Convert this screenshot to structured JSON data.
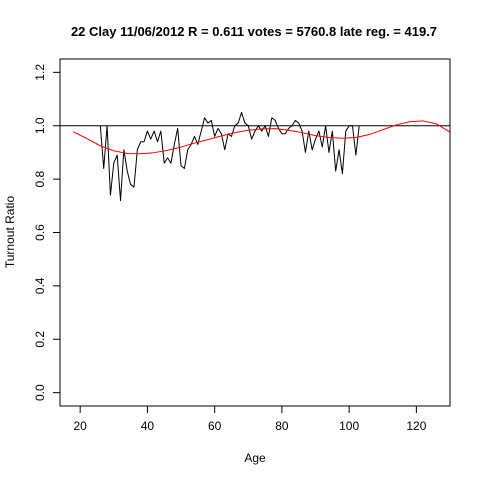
{
  "chart_data": {
    "type": "line",
    "title": "22 Clay 11/06/2012 R = 0.611 votes = 5760.8 late reg. = 419.7",
    "xlabel": "Age",
    "ylabel": "Turnout Ratio",
    "xlim": [
      14,
      130
    ],
    "ylim": [
      -0.05,
      1.25
    ],
    "x_ticks": [
      20,
      40,
      60,
      80,
      100,
      120
    ],
    "y_ticks": [
      0.0,
      0.2,
      0.4,
      0.6,
      0.8,
      1.0,
      1.2
    ],
    "x_tick_labels": [
      "20",
      "40",
      "60",
      "80",
      "100",
      "120"
    ],
    "y_tick_labels": [
      "0.0",
      "0.2",
      "0.4",
      "0.6",
      "0.8",
      "1.0",
      "1.2"
    ],
    "reference_line": {
      "y": 1.0,
      "color": "#000000"
    },
    "series": [
      {
        "color": "#000000",
        "x": [
          26,
          27,
          28,
          29,
          30,
          31,
          32,
          33,
          34,
          35,
          36,
          37,
          38,
          39,
          40,
          41,
          42,
          43,
          44,
          45,
          46,
          47,
          48,
          49,
          50,
          51,
          52,
          53,
          54,
          55,
          56,
          57,
          58,
          59,
          60,
          61,
          62,
          63,
          64,
          65,
          66,
          67,
          68,
          69,
          70,
          71,
          72,
          73,
          74,
          75,
          76,
          77,
          78,
          79,
          80,
          81,
          82,
          83,
          84,
          85,
          86,
          87,
          88,
          89,
          90,
          91,
          92,
          93,
          94,
          95,
          96,
          97,
          98,
          99,
          100,
          101,
          102,
          103
        ],
        "y": [
          1.0,
          0.84,
          1.0,
          0.74,
          0.86,
          0.89,
          0.72,
          0.91,
          0.83,
          0.78,
          0.77,
          0.91,
          0.94,
          0.94,
          0.98,
          0.95,
          0.98,
          0.94,
          0.98,
          0.86,
          0.88,
          0.86,
          0.93,
          0.99,
          0.85,
          0.84,
          0.91,
          0.93,
          0.96,
          0.93,
          0.98,
          1.03,
          1.01,
          1.02,
          0.96,
          0.99,
          0.97,
          0.91,
          0.97,
          0.96,
          1.0,
          1.01,
          1.05,
          1.01,
          1.0,
          0.95,
          0.98,
          1.0,
          0.98,
          1.0,
          0.96,
          1.03,
          1.02,
          0.99,
          0.97,
          0.97,
          0.99,
          1.0,
          1.02,
          1.01,
          0.98,
          0.9,
          0.98,
          0.91,
          0.95,
          0.98,
          0.92,
          1.0,
          0.9,
          0.98,
          0.83,
          0.91,
          0.82,
          0.98,
          1.0,
          1.0,
          0.89,
          1.0
        ]
      },
      {
        "color": "#ff0000",
        "x": [
          18,
          22,
          26,
          30,
          34,
          38,
          42,
          46,
          50,
          54,
          58,
          62,
          66,
          70,
          74,
          78,
          82,
          86,
          90,
          94,
          98,
          102,
          106,
          110,
          114,
          118,
          122,
          126,
          130
        ],
        "y": [
          0.977,
          0.952,
          0.925,
          0.906,
          0.896,
          0.895,
          0.899,
          0.908,
          0.92,
          0.935,
          0.948,
          0.962,
          0.974,
          0.983,
          0.988,
          0.989,
          0.983,
          0.974,
          0.963,
          0.956,
          0.953,
          0.956,
          0.967,
          0.985,
          1.003,
          1.015,
          1.018,
          1.007,
          0.976
        ]
      }
    ]
  }
}
